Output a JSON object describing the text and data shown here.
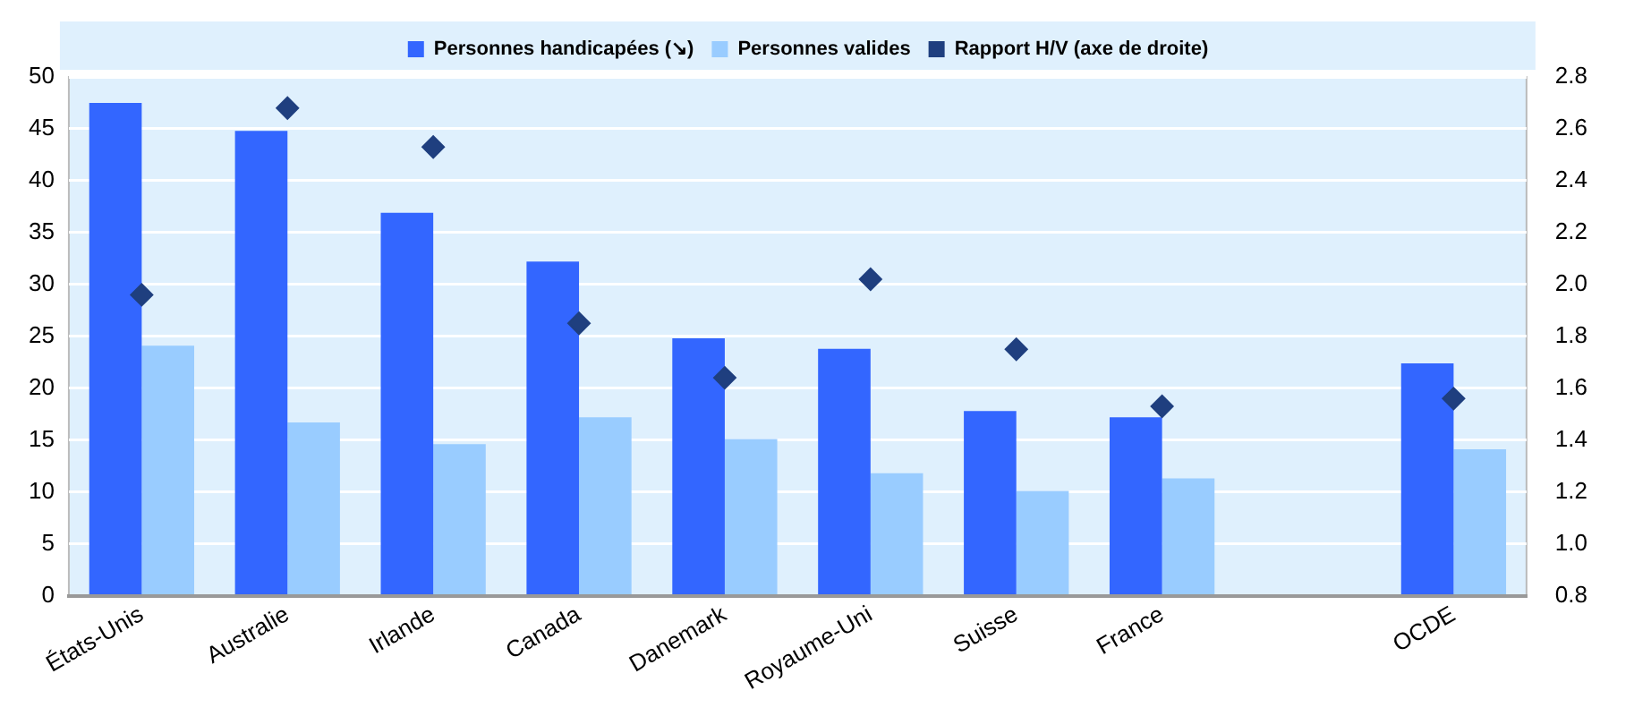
{
  "chart_data": {
    "type": "bar",
    "categories": [
      "États-Unis",
      "Australie",
      "Irlande",
      "Canada",
      "Danemark",
      "Royaume-Uni",
      "Suisse",
      "France",
      null,
      "OCDE"
    ],
    "series": [
      {
        "name": "Personnes handicapées (↘)",
        "color": "#3366ff",
        "values": [
          47.5,
          44.8,
          36.9,
          32.2,
          24.8,
          23.8,
          17.8,
          17.2,
          null,
          22.4
        ]
      },
      {
        "name": "Personnes valides",
        "color": "#99ccff",
        "values": [
          24.1,
          16.7,
          14.6,
          17.2,
          15.1,
          11.8,
          10.1,
          11.3,
          null,
          14.1
        ]
      },
      {
        "name": "Rapport H/V (axe de droite)",
        "type": "scatter",
        "axis": "y2",
        "color": "#1f3f7f",
        "values": [
          1.96,
          2.68,
          2.53,
          1.85,
          1.64,
          2.02,
          1.75,
          1.53,
          null,
          1.56
        ]
      }
    ],
    "ylim": [
      0,
      50
    ],
    "yticks": [
      0,
      5,
      10,
      15,
      20,
      25,
      30,
      35,
      40,
      45,
      50
    ],
    "y2lim": [
      0.8,
      2.8
    ],
    "y2ticks": [
      {
        "value": 0.8,
        "label": "0.8"
      },
      {
        "value": 1,
        "label": "1.0"
      },
      {
        "value": 1.2,
        "label": "1.2"
      },
      {
        "value": 1.4,
        "label": "1.4"
      },
      {
        "value": 1.6,
        "label": "1.6"
      },
      {
        "value": 1.8,
        "label": "1.8"
      },
      {
        "value": 2,
        "label": "2.0"
      },
      {
        "value": 2.2,
        "label": "2.2"
      },
      {
        "value": 2.4,
        "label": "2.4"
      },
      {
        "value": 2.6,
        "label": "2.6"
      },
      {
        "value": 2.8,
        "label": "2.8"
      }
    ],
    "grid": "y",
    "legend": "top",
    "marker": "diamond"
  }
}
